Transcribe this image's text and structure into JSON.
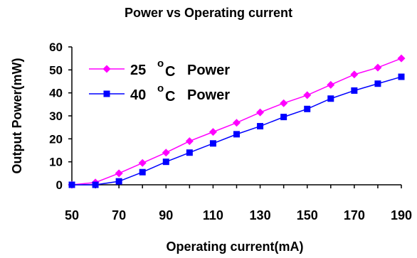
{
  "chart_data": {
    "type": "line",
    "title": "Power vs Operating current",
    "xlabel": "Operating current(mA)",
    "ylabel": "Output Power(mW)",
    "xlim": [
      50,
      190
    ],
    "ylim": [
      0,
      60
    ],
    "xticks": [
      50,
      70,
      90,
      110,
      130,
      150,
      170,
      190
    ],
    "yticks": [
      0,
      10,
      20,
      30,
      40,
      50,
      60
    ],
    "grid": false,
    "legend_placement": "top-left",
    "x": [
      50,
      60,
      70,
      80,
      90,
      100,
      110,
      120,
      130,
      140,
      150,
      160,
      170,
      180,
      190
    ],
    "series": [
      {
        "name": "25 °C Power",
        "label_parts": {
          "temp": "25",
          "deg": "o",
          "unit": "C",
          "word": "Power"
        },
        "color": "#ff00ff",
        "marker": "diamond",
        "values": [
          0,
          1,
          5,
          9.5,
          14,
          19,
          23,
          27,
          31.5,
          35.5,
          39,
          43.5,
          48,
          51,
          55
        ]
      },
      {
        "name": "40 °C Power",
        "label_parts": {
          "temp": "40",
          "deg": "o",
          "unit": "C",
          "word": "Power"
        },
        "color": "#0000ff",
        "marker": "square",
        "values": [
          0,
          0,
          1.5,
          5.5,
          10,
          14,
          18,
          22,
          25.5,
          29.5,
          33,
          37.5,
          41,
          44,
          47
        ]
      }
    ]
  }
}
